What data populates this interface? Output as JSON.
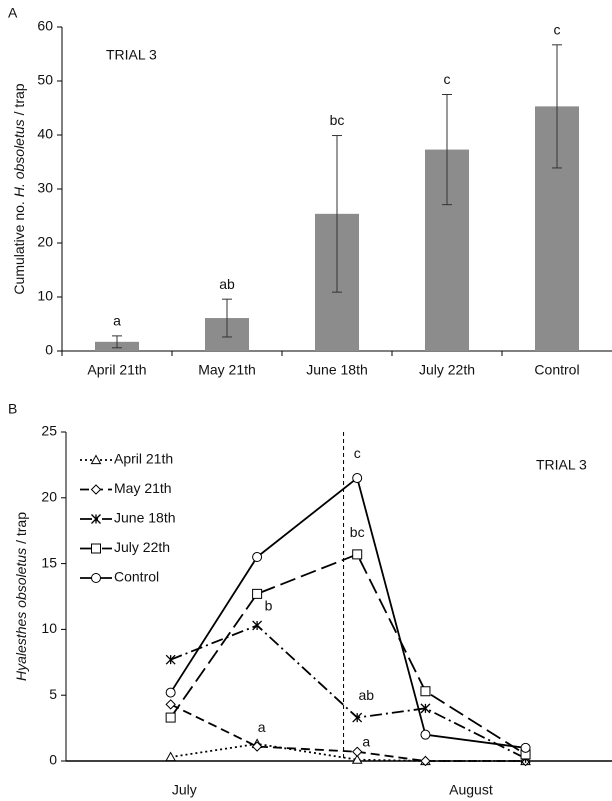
{
  "chart_data": [
    {
      "type": "bar",
      "panel": "A",
      "subtitle": "TRIAL 3",
      "ylabel": [
        "Cumulative no.",
        "H. obsoletus",
        "/ trap"
      ],
      "categories": [
        "April 21th",
        "May 21th",
        "June 18th",
        "July 22th",
        "Control"
      ],
      "values": [
        1.7,
        6.1,
        25.4,
        37.3,
        45.3
      ],
      "errors": [
        1.1,
        3.5,
        14.5,
        10.2,
        11.4
      ],
      "annotations": [
        "a",
        "ab",
        "bc",
        "c",
        "c"
      ],
      "color": "#8c8c8c",
      "ylim": [
        0,
        60
      ],
      "yticks": [
        0,
        10,
        20,
        30,
        40,
        50,
        60
      ]
    },
    {
      "type": "line",
      "panel": "B",
      "subtitle": "TRIAL 3",
      "ylabel": [
        "Hyalesthes obsoletus",
        "/ trap"
      ],
      "x": [
        2.3,
        4.2,
        6.4,
        7.9,
        10.1
      ],
      "xlim": [
        0,
        12
      ],
      "xticks": [
        {
          "value": 2.6,
          "label": "July"
        },
        {
          "value": 8.9,
          "label": "August"
        }
      ],
      "vline": 6.1,
      "ylim": [
        0,
        25
      ],
      "yticks": [
        0,
        5,
        10,
        15,
        20,
        25
      ],
      "legend": "upper left",
      "series": [
        {
          "name": "April 21th",
          "color": "#000000",
          "dash": "2,3",
          "marker": "triangle",
          "values": [
            0.3,
            1.3,
            0.1,
            0,
            0
          ]
        },
        {
          "name": "May 21th",
          "color": "#000000",
          "dash": "9,5",
          "marker": "diamond",
          "values": [
            4.3,
            1.1,
            0.7,
            0,
            0
          ]
        },
        {
          "name": "June 18th",
          "color": "#000000",
          "dash": "12,4,2,4",
          "marker": "asterisk",
          "values": [
            7.7,
            10.3,
            3.3,
            4.0,
            0.2
          ]
        },
        {
          "name": "July 22th",
          "color": "#000000",
          "dash": "16,6",
          "marker": "square",
          "values": [
            3.3,
            12.7,
            15.7,
            5.3,
            0.5
          ]
        },
        {
          "name": "Control",
          "color": "#000000",
          "dash": "",
          "marker": "circle",
          "values": [
            5.2,
            15.5,
            21.5,
            2.0,
            1.0
          ]
        }
      ],
      "annotations": [
        "c",
        "bc",
        "b",
        "ab",
        "a",
        "a"
      ]
    }
  ]
}
